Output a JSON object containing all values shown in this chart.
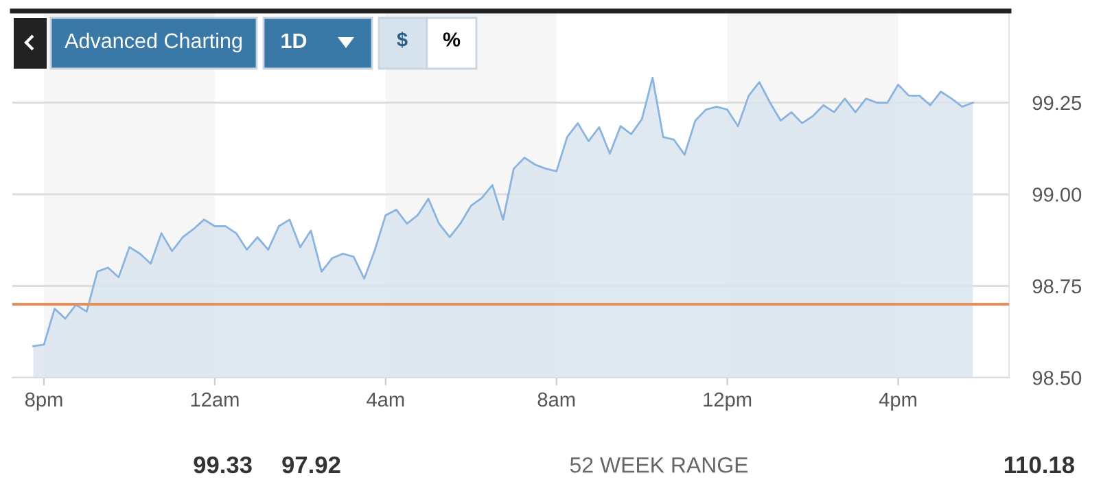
{
  "chart_data": {
    "type": "area",
    "categories": [
      null,
      "8pm",
      null,
      null,
      null,
      null,
      null,
      null,
      null,
      null,
      null,
      null,
      null,
      null,
      null,
      null,
      null,
      "12am",
      null,
      null,
      null,
      null,
      null,
      null,
      null,
      null,
      null,
      null,
      null,
      null,
      null,
      null,
      null,
      "4am",
      null,
      null,
      null,
      null,
      null,
      null,
      null,
      null,
      null,
      null,
      null,
      null,
      null,
      null,
      null,
      "8am",
      null,
      null,
      null,
      null,
      null,
      null,
      null,
      null,
      null,
      null,
      null,
      null,
      null,
      null,
      null,
      "12pm",
      null,
      null,
      null,
      null,
      null,
      null,
      null,
      null,
      null,
      null,
      null,
      null,
      null,
      null,
      null,
      "4pm",
      null,
      null,
      null,
      null,
      null,
      null,
      null
    ],
    "series": [
      {
        "color": "#8ab4e0",
        "values": [
          98.586,
          98.59,
          98.688,
          98.661,
          98.699,
          98.68,
          98.789,
          98.8,
          98.774,
          98.856,
          98.838,
          98.811,
          98.894,
          98.845,
          98.883,
          98.905,
          98.931,
          98.913,
          98.913,
          98.894,
          98.849,
          98.883,
          98.849,
          98.913,
          98.931,
          98.856,
          98.901,
          98.789,
          98.826,
          98.838,
          98.83,
          98.77,
          98.849,
          98.943,
          98.958,
          98.92,
          98.943,
          98.988,
          98.92,
          98.883,
          98.92,
          98.969,
          98.99,
          99.025,
          98.931,
          99.07,
          99.1,
          99.081,
          99.07,
          99.063,
          99.156,
          99.194,
          99.145,
          99.183,
          99.111,
          99.186,
          99.164,
          99.205,
          99.318,
          99.156,
          99.149,
          99.108,
          99.201,
          99.231,
          99.239,
          99.231,
          99.186,
          99.269,
          99.306,
          99.25,
          99.201,
          99.224,
          99.194,
          99.213,
          99.243,
          99.224,
          99.261,
          99.224,
          99.261,
          99.25,
          99.25,
          99.299,
          99.269,
          99.269,
          99.243,
          99.28,
          99.261,
          99.239,
          99.25
        ]
      }
    ],
    "ylim": [
      98.5,
      99.5
    ],
    "yticks": [
      {
        "value": 98.5,
        "label": "98.50"
      },
      98.75,
      {
        "value": 99.0,
        "label": "99.00"
      },
      99.25
    ],
    "grid": "y",
    "ref_lines": [
      {
        "axis": "y",
        "value": 98.7,
        "color": "#e0915f"
      }
    ],
    "annotations": [
      "Advanced Charting",
      "1D",
      "$",
      "%",
      "99.33",
      "97.92",
      "52 WEEK RANGE",
      "110.18"
    ]
  }
}
